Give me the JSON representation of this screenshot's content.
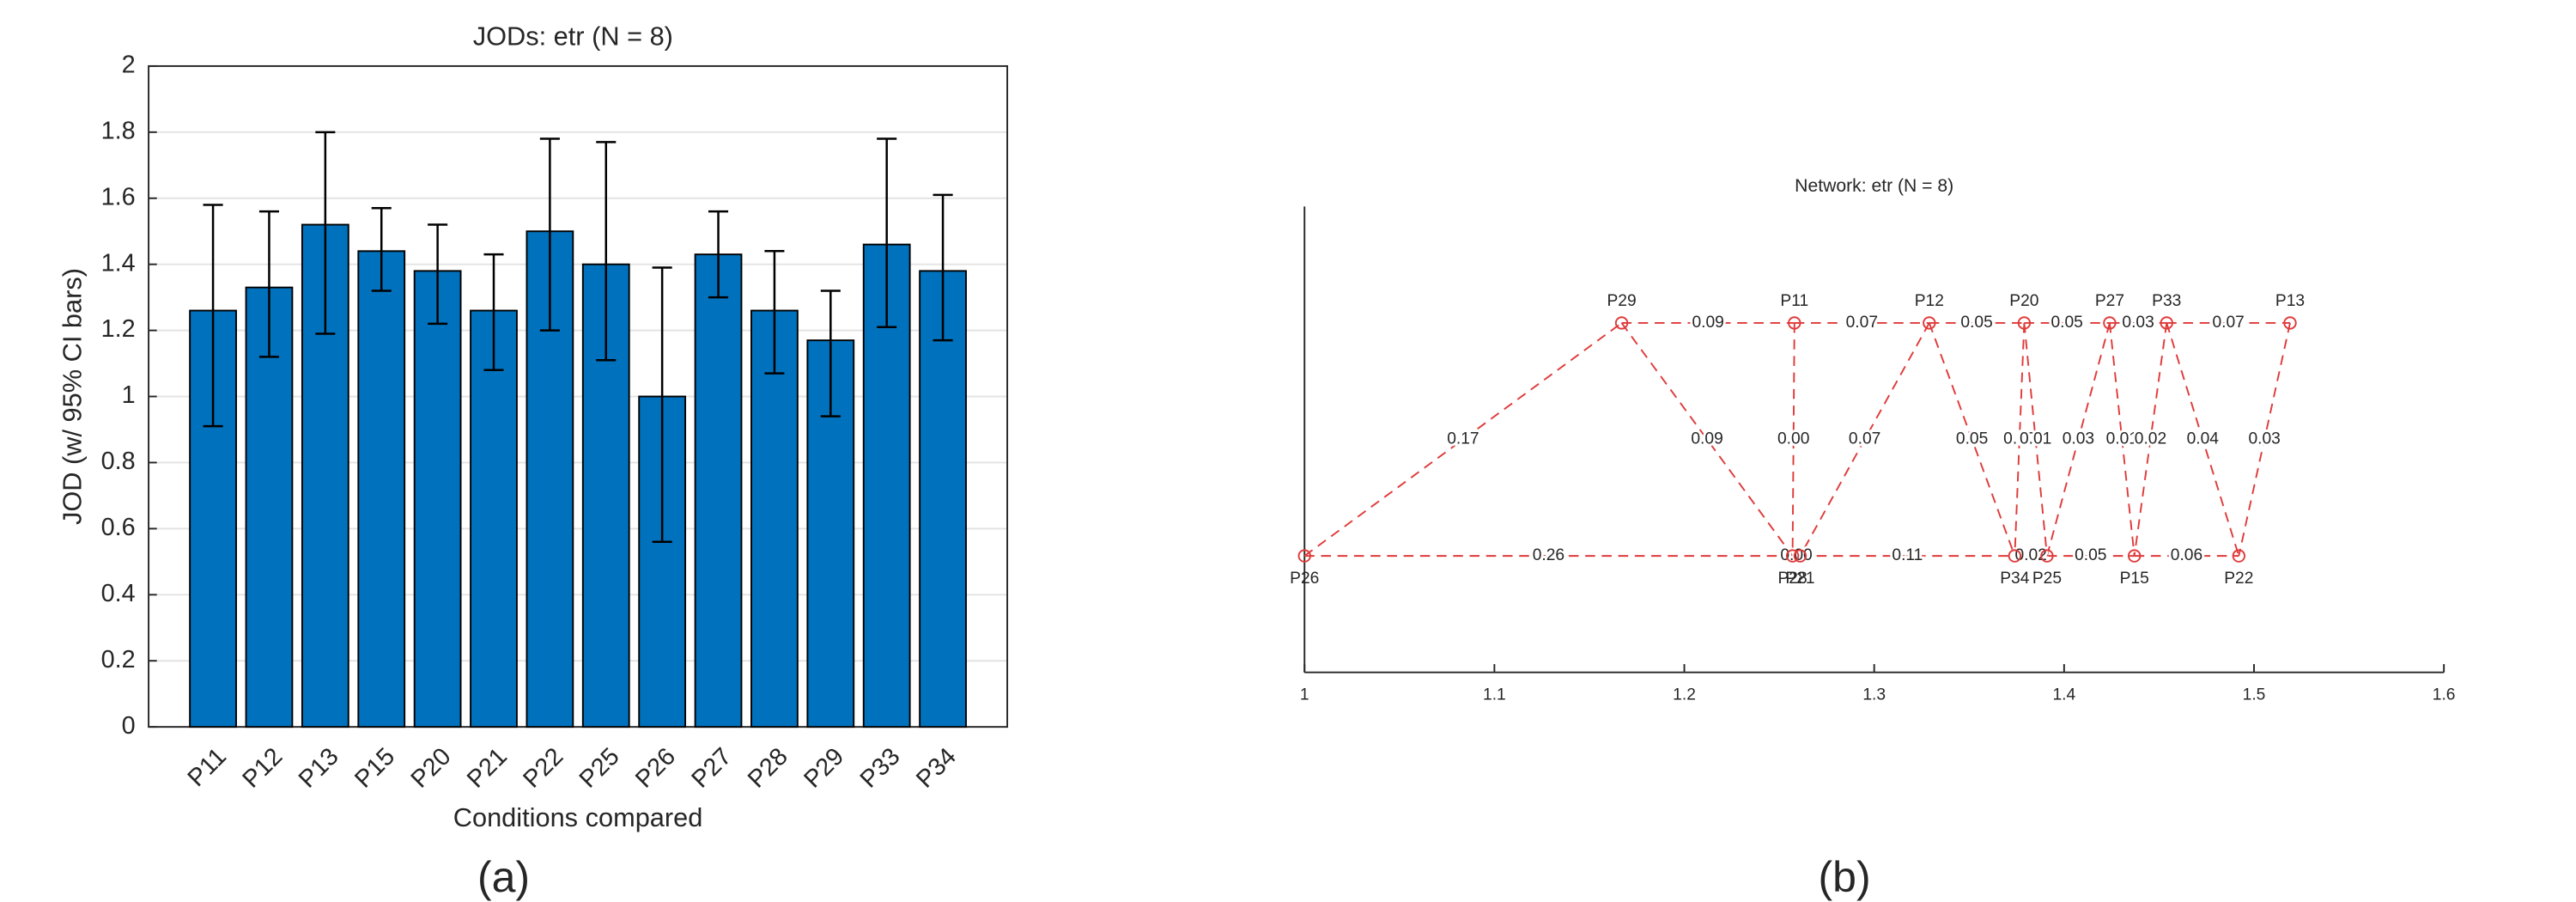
{
  "chart_data": [
    {
      "type": "bar",
      "title": "JODs: etr (N = 8)",
      "x_label": "Conditions compared",
      "y_label": "JOD (w/ 95% CI bars)",
      "caption": "(a)",
      "categories": [
        "P11",
        "P12",
        "P13",
        "P15",
        "P20",
        "P21",
        "P22",
        "P25",
        "P26",
        "P27",
        "P28",
        "P29",
        "P33",
        "P34"
      ],
      "values": [
        1.26,
        1.33,
        1.52,
        1.44,
        1.38,
        1.26,
        1.5,
        1.4,
        1.0,
        1.43,
        1.26,
        1.17,
        1.46,
        1.38
      ],
      "ci_lower": [
        0.91,
        1.12,
        1.19,
        1.32,
        1.22,
        1.08,
        1.2,
        1.11,
        0.56,
        1.3,
        1.07,
        0.94,
        1.21,
        1.17
      ],
      "ci_upper": [
        1.58,
        1.56,
        1.8,
        1.57,
        1.52,
        1.43,
        1.78,
        1.77,
        1.39,
        1.56,
        1.44,
        1.32,
        1.78,
        1.61
      ],
      "color": "#0072bd",
      "ylim": [
        0,
        2
      ],
      "yticks": [
        0,
        0.2,
        0.4,
        0.6,
        0.8,
        1,
        1.2,
        1.4,
        1.6,
        1.8,
        2
      ],
      "grid": true
    },
    {
      "type": "network",
      "title": "Network: etr (N = 8)",
      "caption": "(b)",
      "color": "#e03a3a",
      "xlim": [
        1,
        1.6
      ],
      "xticks": [
        1,
        1.1,
        1.2,
        1.3,
        1.4,
        1.5,
        1.6
      ],
      "ylim": [
        0,
        1
      ],
      "nodes": [
        {
          "name": "P26",
          "x": 1.0,
          "y": 0.25
        },
        {
          "name": "P29",
          "x": 1.167,
          "y": 0.75
        },
        {
          "name": "P11",
          "x": 1.258,
          "y": 0.75
        },
        {
          "name": "P28",
          "x": 1.257,
          "y": 0.25
        },
        {
          "name": "P21",
          "x": 1.261,
          "y": 0.25
        },
        {
          "name": "P12",
          "x": 1.329,
          "y": 0.75
        },
        {
          "name": "P20",
          "x": 1.379,
          "y": 0.75
        },
        {
          "name": "P34",
          "x": 1.374,
          "y": 0.25
        },
        {
          "name": "P25",
          "x": 1.391,
          "y": 0.25
        },
        {
          "name": "P27",
          "x": 1.424,
          "y": 0.75
        },
        {
          "name": "P33",
          "x": 1.454,
          "y": 0.75
        },
        {
          "name": "P15",
          "x": 1.437,
          "y": 0.25
        },
        {
          "name": "P22",
          "x": 1.492,
          "y": 0.25
        },
        {
          "name": "P13",
          "x": 1.519,
          "y": 0.75
        }
      ],
      "edges": [
        {
          "source": "P29",
          "target": "P11"
        },
        {
          "source": "P11",
          "target": "P12"
        },
        {
          "source": "P12",
          "target": "P20"
        },
        {
          "source": "P20",
          "target": "P27"
        },
        {
          "source": "P27",
          "target": "P33"
        },
        {
          "source": "P33",
          "target": "P13"
        },
        {
          "source": "P26",
          "target": "P28"
        },
        {
          "source": "P28",
          "target": "P21"
        },
        {
          "source": "P21",
          "target": "P34"
        },
        {
          "source": "P34",
          "target": "P25"
        },
        {
          "source": "P25",
          "target": "P15"
        },
        {
          "source": "P15",
          "target": "P22"
        },
        {
          "source": "P26",
          "target": "P29"
        },
        {
          "source": "P29",
          "target": "P28"
        },
        {
          "source": "P11",
          "target": "P28"
        },
        {
          "source": "P12",
          "target": "P21"
        },
        {
          "source": "P12",
          "target": "P34"
        },
        {
          "source": "P20",
          "target": "P34"
        },
        {
          "source": "P20",
          "target": "P25"
        },
        {
          "source": "P27",
          "target": "P25"
        },
        {
          "source": "P27",
          "target": "P15"
        },
        {
          "source": "P33",
          "target": "P15"
        },
        {
          "source": "P33",
          "target": "P22"
        },
        {
          "source": "P13",
          "target": "P22"
        }
      ],
      "values": [
        0.09,
        0.07,
        0.05,
        0.05,
        0.03,
        0.07,
        0.26,
        0.0,
        0.11,
        0.02,
        0.05,
        0.06,
        0.17,
        0.09,
        0.0,
        0.07,
        0.05,
        0.0,
        0.01,
        0.03,
        0.01,
        0.02,
        0.04,
        0.03
      ],
      "value_labels": [
        "0.09",
        "0.07",
        "0.05",
        "0.05",
        "0.03",
        "0.07",
        "0.26",
        "0.00",
        "0.11",
        "0.02",
        "0.05",
        "0.06",
        "0.17",
        "0.09",
        "0.00",
        "0.07",
        "0.05",
        "0.00",
        "0.01",
        "0.03",
        "0.01",
        "0.02",
        "0.04",
        "0.03"
      ]
    }
  ]
}
